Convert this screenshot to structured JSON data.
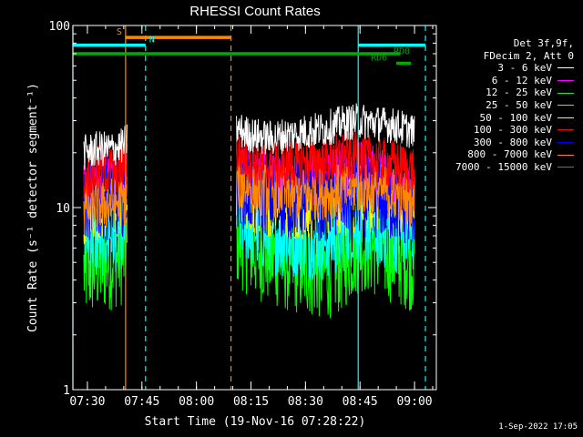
{
  "chart_data": {
    "type": "line",
    "title": "RHESSI Count Rates",
    "xlabel": "Start Time (19-Nov-16 07:28:22)",
    "ylabel": "Count Rate (s⁻¹ detector segment⁻¹)",
    "yscale": "log",
    "ylim": [
      1,
      100
    ],
    "y_ticks": [
      "1",
      "10",
      "100"
    ],
    "xlim": [
      "07:26",
      "09:06"
    ],
    "x_ticks": [
      "07:30",
      "07:45",
      "08:00",
      "08:15",
      "08:30",
      "08:45",
      "09:00"
    ],
    "grid": false,
    "legend_placement": "right",
    "legend_header": [
      "Det 3f,9f,",
      "FDecim 2, Att 0"
    ],
    "series": [
      {
        "name": "3 - 6 keV",
        "color": "#000000",
        "x": [
          "07:29",
          "07:33",
          "07:37",
          "07:40",
          "07:41",
          "08:11",
          "08:15",
          "08:20",
          "08:25",
          "08:30",
          "08:35",
          "08:40",
          "08:45",
          "08:50",
          "08:55",
          "09:00"
        ],
        "values": [
          20,
          21,
          21,
          22,
          24,
          27,
          25,
          24,
          25,
          26,
          27,
          29,
          30,
          29,
          28,
          26
        ]
      },
      {
        "name": "6 - 12 keV",
        "color": "#ff00ff",
        "x": [
          "07:29",
          "07:33",
          "07:37",
          "07:40",
          "07:41",
          "08:11",
          "08:15",
          "08:20",
          "08:25",
          "08:30",
          "08:35",
          "08:40",
          "08:45",
          "08:50",
          "08:55",
          "09:00"
        ],
        "values": [
          13,
          14,
          14,
          14,
          16,
          17,
          15,
          14,
          14,
          15,
          15,
          16,
          16,
          15,
          14,
          13
        ]
      },
      {
        "name": "12 - 25 keV",
        "color": "#00ff00",
        "x": [
          "07:29",
          "07:33",
          "07:37",
          "07:40",
          "07:41",
          "08:11",
          "08:15",
          "08:20",
          "08:25",
          "08:30",
          "08:35",
          "08:40",
          "08:45",
          "08:50",
          "08:55",
          "09:00"
        ],
        "values": [
          4.5,
          4.8,
          5.2,
          5.5,
          6.5,
          7,
          6,
          5.5,
          5,
          4.8,
          4.5,
          5,
          6.5,
          6,
          5.5,
          5
        ]
      },
      {
        "name": "25 - 50 keV",
        "color": "#00ffff",
        "x": [
          "07:29",
          "07:33",
          "07:37",
          "07:40",
          "07:41",
          "08:11",
          "08:15",
          "08:20",
          "08:25",
          "08:30",
          "08:35",
          "08:40",
          "08:45",
          "08:50",
          "08:55",
          "09:00"
        ],
        "values": [
          7,
          7,
          7.5,
          8,
          9,
          9.5,
          8,
          7.5,
          7,
          7,
          6.8,
          7.5,
          8.5,
          8,
          7.5,
          7
        ]
      },
      {
        "name": "50 - 100 keV",
        "color": "#ffff00",
        "x": [
          "07:29",
          "07:33",
          "07:37",
          "07:40",
          "07:41",
          "08:11",
          "08:15",
          "08:20",
          "08:25",
          "08:30",
          "08:35",
          "08:40",
          "08:45",
          "08:50",
          "08:55",
          "09:00"
        ],
        "values": [
          9.5,
          9.8,
          10,
          10.2,
          11,
          12,
          11,
          10.5,
          10.2,
          10,
          10,
          10.5,
          11,
          10.8,
          10.5,
          10
        ]
      },
      {
        "name": "100 - 300 keV",
        "color": "#ff0000",
        "x": [
          "07:29",
          "07:33",
          "07:37",
          "07:40",
          "07:41",
          "08:11",
          "08:15",
          "08:20",
          "08:25",
          "08:30",
          "08:35",
          "08:40",
          "08:45",
          "08:50",
          "08:55",
          "09:00"
        ],
        "values": [
          15,
          16,
          16,
          17,
          18,
          20,
          18,
          17,
          17,
          18,
          18,
          19,
          19,
          18,
          17,
          16
        ]
      },
      {
        "name": "300 - 800 keV",
        "color": "#0000ff",
        "x": [
          "07:29",
          "07:33",
          "07:37",
          "07:40",
          "07:41",
          "08:11",
          "08:15",
          "08:20",
          "08:25",
          "08:30",
          "08:35",
          "08:40",
          "08:45",
          "08:50",
          "08:55",
          "09:00"
        ],
        "values": [
          10.5,
          11,
          11,
          11.5,
          12,
          13,
          12,
          11.5,
          11,
          11,
          10.8,
          11.2,
          11.5,
          11,
          10.5,
          10
        ]
      },
      {
        "name": "800 - 7000 keV",
        "color": "#ff8800",
        "x": [
          "07:29",
          "07:33",
          "07:37",
          "07:40",
          "07:41",
          "08:11",
          "08:15",
          "08:20",
          "08:25",
          "08:30",
          "08:35",
          "08:40",
          "08:45",
          "08:50",
          "08:55",
          "09:00"
        ],
        "values": [
          10,
          10.5,
          10.5,
          11,
          12,
          14,
          13,
          12.5,
          12,
          12,
          12,
          12.5,
          13,
          12.5,
          12,
          11
        ]
      },
      {
        "name": "7000 - 15000 keV",
        "color": "#aa6600",
        "x": [],
        "values": []
      }
    ],
    "flags": [
      {
        "label": "S",
        "color": "#ff8800",
        "start": "07:40.5",
        "end": "08:09.5",
        "y": 86
      },
      {
        "label": "N",
        "color": "#00ffff",
        "start": "07:26",
        "end": "07:46",
        "y": 78
      },
      {
        "label": "",
        "color": "#00ffff",
        "start": "08:44.5",
        "end": "09:03",
        "y": 78
      },
      {
        "label": "",
        "color": "#00aa00",
        "start": "07:26",
        "end": "08:56",
        "y": 70
      },
      {
        "label": "RD6",
        "color": "#00aa00",
        "start": "08:55",
        "end": "08:59",
        "y": 62
      },
      {
        "label": "RD0",
        "color": "#00aa00",
        "start": "",
        "end": "",
        "y": 72
      }
    ],
    "vlines": [
      {
        "t": "07:26",
        "color": "#00ffff",
        "dashed": false
      },
      {
        "t": "07:40.5",
        "color": "#ff8800",
        "dashed": false
      },
      {
        "t": "07:46",
        "color": "#00ffff",
        "dashed": true
      },
      {
        "t": "08:09.5",
        "color": "#ff8800",
        "dashed": true
      },
      {
        "t": "08:44.5",
        "color": "#00ffff",
        "dashed": false
      },
      {
        "t": "09:03",
        "color": "#00ffff",
        "dashed": true
      }
    ]
  },
  "legend": {
    "header_1": "Det 3f,9f,",
    "header_2": "FDecim 2, Att 0",
    "items": [
      {
        "label": "3 - 6 keV",
        "color": "#ffffff"
      },
      {
        "label": "6 - 12 keV",
        "color": "#ff00ff"
      },
      {
        "label": "12 - 25 keV",
        "color": "#00ff00"
      },
      {
        "label": "25 - 50 keV",
        "color": "#00ffff"
      },
      {
        "label": "50 - 100 keV",
        "color": "#ffff00"
      },
      {
        "label": "100 - 300 keV",
        "color": "#ff0000"
      },
      {
        "label": "300 - 800 keV",
        "color": "#0000ff"
      },
      {
        "label": "800 - 7000 keV",
        "color": "#ff8800"
      },
      {
        "label": "7000 - 15000 keV",
        "color": "#aa6600"
      }
    ]
  },
  "footer": {
    "date_stamp": "1-Sep-2022 17:05"
  }
}
